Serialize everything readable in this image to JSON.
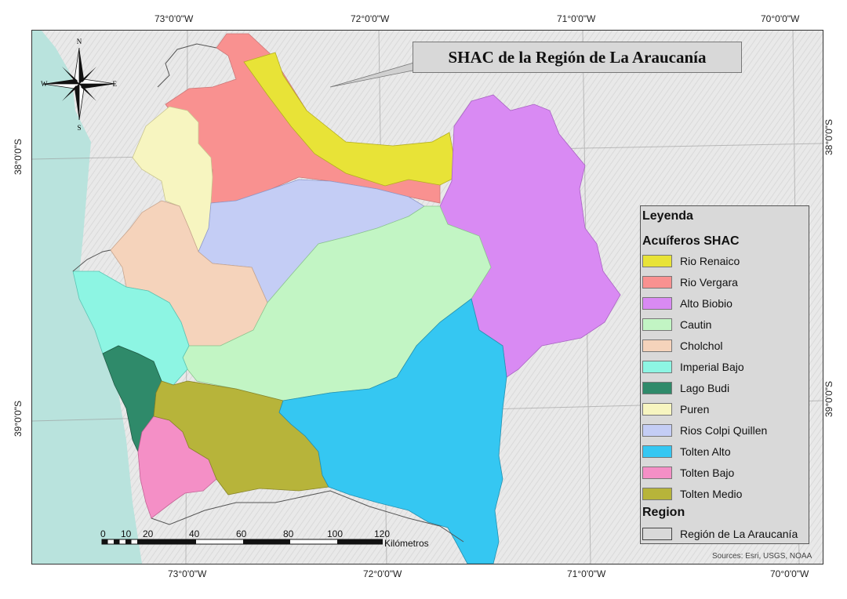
{
  "title": "SHAC de la Región de La Araucanía",
  "coordinates": {
    "top": [
      "73°0'0\"W",
      "72°0'0\"W",
      "71°0'0\"W",
      "70°0'0\"W"
    ],
    "bottom": [
      "73°0'0\"W",
      "72°0'0\"W",
      "71°0'0\"W",
      "70°0'0\"W"
    ],
    "left": [
      "38°0'0\"S",
      "39°0'0\"S"
    ],
    "right": [
      "38°0'0\"S",
      "39°0'0\"S"
    ]
  },
  "compass": {
    "n": "N",
    "s": "S",
    "e": "E",
    "w": "W"
  },
  "legend": {
    "title": "Leyenda",
    "section_aquifers": "Acuíferos SHAC",
    "items": [
      {
        "label": "Rio Renaico",
        "color": "#e8e337"
      },
      {
        "label": "Rio Vergara",
        "color": "#f99190"
      },
      {
        "label": "Alto Biobio",
        "color": "#d98af3"
      },
      {
        "label": "Cautin",
        "color": "#c2f5c4"
      },
      {
        "label": "Cholchol",
        "color": "#f5d3bb"
      },
      {
        "label": "Imperial Bajo",
        "color": "#8df5e3"
      },
      {
        "label": "Lago Budi",
        "color": "#2f8a6a"
      },
      {
        "label": "Puren",
        "color": "#f7f5c0"
      },
      {
        "label": "Rios Colpi Quillen",
        "color": "#c4cdf5"
      },
      {
        "label": "Tolten Alto",
        "color": "#35c7f2"
      },
      {
        "label": "Tolten Bajo",
        "color": "#f48fc6"
      },
      {
        "label": "Tolten Medio",
        "color": "#b7b43a"
      }
    ],
    "section_region": "Region",
    "region_label": "Región de La Araucanía"
  },
  "scale": {
    "ticks": [
      "0",
      "10",
      "20",
      "40",
      "60",
      "80",
      "100",
      "120"
    ],
    "unit": "Kilómetros"
  },
  "source": "Sources: Esri, USGS, NOAA"
}
